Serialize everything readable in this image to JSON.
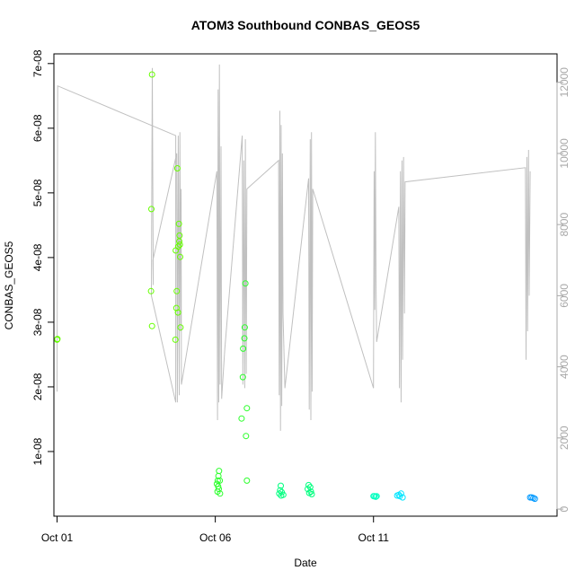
{
  "chart_data": {
    "type": "scatter",
    "title": "ATOM3 Southbound CONBAS_GEOS5",
    "xlabel": "Date",
    "ylabel": "CONBAS_GEOS5",
    "xlim_days": [
      0.9,
      16.8
    ],
    "ylim": [
      0.0,
      7.15e-08
    ],
    "y2lim": [
      -200,
      12800
    ],
    "x_tick_positions_days": [
      1,
      6,
      11
    ],
    "x_tick_labels": [
      "Oct 01",
      "Oct 06",
      "Oct 11"
    ],
    "y_tick_values": [
      1e-08,
      2e-08,
      3e-08,
      4e-08,
      5e-08,
      6e-08,
      7e-08
    ],
    "y_tick_labels": [
      "1e-08",
      "2e-08",
      "3e-08",
      "4e-08",
      "5e-08",
      "6e-08",
      "7e-08"
    ],
    "y2_tick_values": [
      0,
      2000,
      4000,
      6000,
      8000,
      10000,
      12000
    ],
    "y2_tick_labels": [
      "0",
      "2000",
      "4000",
      "6000",
      "8000",
      "10000",
      "12000"
    ],
    "grid": false,
    "colors": {
      "altitude_line": "#c0c0c0",
      "axis": "#000000",
      "right_axis": "#a8a8a8",
      "point_palette": [
        "#66ff00",
        "#2bff2b",
        "#00ff7f",
        "#00ffbf",
        "#00e5ff",
        "#0099ff"
      ]
    },
    "points": [
      {
        "x": 1.0,
        "y": 2.73e-08
      },
      {
        "x": 1.01,
        "y": 2.74e-08
      },
      {
        "x": 4.0,
        "y": 6.83e-08
      },
      {
        "x": 3.98,
        "y": 4.75e-08
      },
      {
        "x": 3.97,
        "y": 3.48e-08
      },
      {
        "x": 4.0,
        "y": 2.94e-08
      },
      {
        "x": 4.75,
        "y": 4.11e-08
      },
      {
        "x": 4.8,
        "y": 5.38e-08
      },
      {
        "x": 4.85,
        "y": 4.52e-08
      },
      {
        "x": 4.87,
        "y": 4.34e-08
      },
      {
        "x": 4.86,
        "y": 4.25e-08
      },
      {
        "x": 4.88,
        "y": 4.2e-08
      },
      {
        "x": 4.83,
        "y": 4.17e-08
      },
      {
        "x": 4.89,
        "y": 4.01e-08
      },
      {
        "x": 4.78,
        "y": 3.48e-08
      },
      {
        "x": 4.77,
        "y": 3.22e-08
      },
      {
        "x": 4.82,
        "y": 3.15e-08
      },
      {
        "x": 4.9,
        "y": 2.92e-08
      },
      {
        "x": 4.74,
        "y": 2.73e-08
      },
      {
        "x": 6.12,
        "y": 7e-09
      },
      {
        "x": 6.1,
        "y": 6.2e-09
      },
      {
        "x": 6.08,
        "y": 5.5e-09
      },
      {
        "x": 6.14,
        "y": 5.5e-09
      },
      {
        "x": 6.05,
        "y": 5e-09
      },
      {
        "x": 6.09,
        "y": 4.6e-09
      },
      {
        "x": 6.11,
        "y": 4.2e-09
      },
      {
        "x": 6.07,
        "y": 3.8e-09
      },
      {
        "x": 6.15,
        "y": 3.5e-09
      },
      {
        "x": 6.95,
        "y": 3.6e-08
      },
      {
        "x": 6.93,
        "y": 2.92e-08
      },
      {
        "x": 6.92,
        "y": 2.75e-08
      },
      {
        "x": 6.88,
        "y": 2.59e-08
      },
      {
        "x": 6.87,
        "y": 2.15e-08
      },
      {
        "x": 7.0,
        "y": 1.67e-08
      },
      {
        "x": 6.83,
        "y": 1.51e-08
      },
      {
        "x": 6.97,
        "y": 1.24e-08
      },
      {
        "x": 7.0,
        "y": 5.5e-09
      },
      {
        "x": 8.07,
        "y": 4.7e-09
      },
      {
        "x": 8.05,
        "y": 4e-09
      },
      {
        "x": 8.1,
        "y": 3.7e-09
      },
      {
        "x": 8.02,
        "y": 3.5e-09
      },
      {
        "x": 8.15,
        "y": 3.3e-09
      },
      {
        "x": 8.08,
        "y": 3.2e-09
      },
      {
        "x": 8.95,
        "y": 4.8e-09
      },
      {
        "x": 9.0,
        "y": 4.5e-09
      },
      {
        "x": 8.92,
        "y": 4.2e-09
      },
      {
        "x": 9.02,
        "y": 3.8e-09
      },
      {
        "x": 8.97,
        "y": 3.6e-09
      },
      {
        "x": 9.05,
        "y": 3.4e-09
      },
      {
        "x": 11.0,
        "y": 3.1e-09
      },
      {
        "x": 11.03,
        "y": 3.1e-09
      },
      {
        "x": 11.07,
        "y": 3e-09
      },
      {
        "x": 11.1,
        "y": 3.1e-09
      },
      {
        "x": 11.75,
        "y": 3.2e-09
      },
      {
        "x": 11.8,
        "y": 3.3e-09
      },
      {
        "x": 11.87,
        "y": 3.5e-09
      },
      {
        "x": 11.92,
        "y": 2.9e-09
      },
      {
        "x": 11.83,
        "y": 3.1e-09
      },
      {
        "x": 15.95,
        "y": 2.9e-09
      },
      {
        "x": 16.0,
        "y": 2.9e-09
      },
      {
        "x": 16.05,
        "y": 2.8e-09
      },
      {
        "x": 16.1,
        "y": 2.7e-09
      }
    ],
    "altitude_trace": [
      [
        1.0,
        3300
      ],
      [
        1.02,
        11900
      ],
      [
        4.75,
        10500
      ],
      [
        4.75,
        3000
      ],
      [
        3.98,
        6000
      ],
      [
        4.01,
        12400
      ],
      [
        4.04,
        6300
      ],
      [
        4.03,
        7000
      ],
      [
        4.78,
        10000
      ],
      [
        4.8,
        3000
      ],
      [
        4.83,
        10500
      ],
      [
        4.86,
        3200
      ],
      [
        4.88,
        10600
      ],
      [
        4.91,
        5000
      ],
      [
        4.92,
        9000
      ],
      [
        4.93,
        3500
      ],
      [
        6.05,
        9500
      ],
      [
        6.07,
        2500
      ],
      [
        6.09,
        11800
      ],
      [
        6.11,
        3000
      ],
      [
        6.13,
        12500
      ],
      [
        6.15,
        3500
      ],
      [
        6.18,
        10200
      ],
      [
        6.2,
        3100
      ],
      [
        6.3,
        4500
      ],
      [
        6.85,
        10500
      ],
      [
        6.87,
        3500
      ],
      [
        6.9,
        9800
      ],
      [
        6.93,
        3400
      ],
      [
        6.95,
        10400
      ],
      [
        6.98,
        3800
      ],
      [
        7.0,
        9000
      ],
      [
        8.0,
        9800
      ],
      [
        8.02,
        3200
      ],
      [
        8.04,
        11200
      ],
      [
        8.06,
        2200
      ],
      [
        8.08,
        10800
      ],
      [
        8.1,
        2900
      ],
      [
        8.12,
        10000
      ],
      [
        8.14,
        5500
      ],
      [
        8.2,
        3400
      ],
      [
        8.95,
        9300
      ],
      [
        8.97,
        2800
      ],
      [
        9.0,
        10400
      ],
      [
        9.02,
        2500
      ],
      [
        9.04,
        10600
      ],
      [
        9.06,
        3300
      ],
      [
        9.08,
        9000
      ],
      [
        11.0,
        3400
      ],
      [
        11.02,
        9500
      ],
      [
        11.04,
        5600
      ],
      [
        11.06,
        10600
      ],
      [
        11.08,
        6500
      ],
      [
        11.1,
        4700
      ],
      [
        11.8,
        8500
      ],
      [
        11.82,
        3400
      ],
      [
        11.85,
        9500
      ],
      [
        11.87,
        3000
      ],
      [
        11.9,
        9800
      ],
      [
        11.92,
        4200
      ],
      [
        11.95,
        9900
      ],
      [
        11.98,
        5500
      ],
      [
        12.0,
        9200
      ],
      [
        15.8,
        9600
      ],
      [
        15.82,
        4200
      ],
      [
        15.85,
        9900
      ],
      [
        15.87,
        5000
      ],
      [
        15.9,
        10100
      ],
      [
        15.92,
        6000
      ],
      [
        15.95,
        9500
      ]
    ]
  }
}
